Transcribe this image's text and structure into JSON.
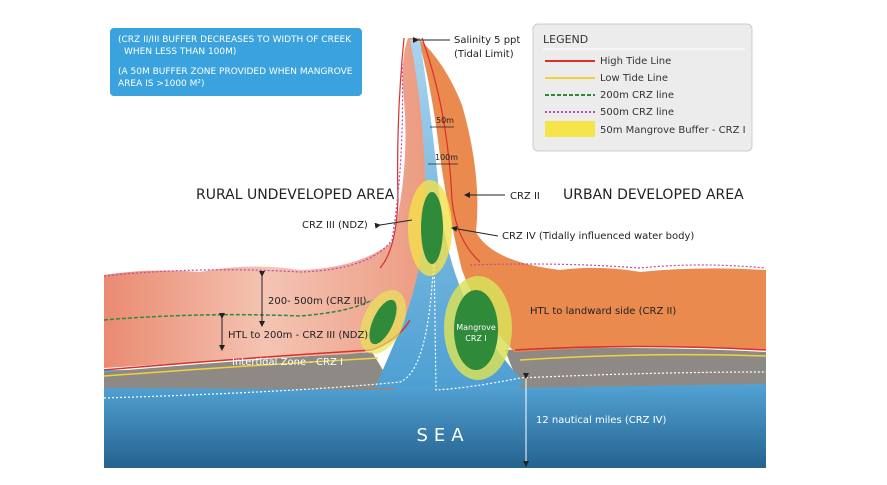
{
  "note": {
    "lines": [
      "(CRZ II/III BUFFER DECREASES TO WIDTH OF CREEK",
      "WHEN LESS THAN 100M)",
      "(A 50M BUFFER ZONE PROVIDED WHEN MANGROVE",
      "AREA IS >1000 M²)"
    ]
  },
  "tidal_limit": {
    "lines": [
      "Salinity 5 ppt",
      "(Tidal Limit)"
    ]
  },
  "legend": {
    "title": "LEGEND",
    "items": [
      {
        "label": "High Tide Line"
      },
      {
        "label": "Low Tide Line"
      },
      {
        "label": "200m CRZ line"
      },
      {
        "label": "500m CRZ line"
      },
      {
        "label": "50m Mangrove Buffer - CRZ I"
      }
    ]
  },
  "areas": {
    "rural": "RURAL UNDEVELOPED AREA",
    "urban": "URBAN DEVELOPED AREA"
  },
  "widths": {
    "w50": "50m",
    "w100": "100m"
  },
  "labels": {
    "crz2": "CRZ II",
    "crz3": "CRZ III (NDZ)",
    "crz4": "CRZ IV (Tidally influenced water body)",
    "zone_200_500": "200- 500m (CRZ III)",
    "zone_htl_200": "HTL to 200m - CRZ III (NDZ)",
    "intertidal": "Intertidal Zone - CRZ I",
    "mangrove": [
      "Mangrove",
      "CRZ I"
    ],
    "landward": "HTL to landward side (CRZ II)",
    "nautical": "12 nautical miles (CRZ IV)",
    "sea": "SEA"
  }
}
